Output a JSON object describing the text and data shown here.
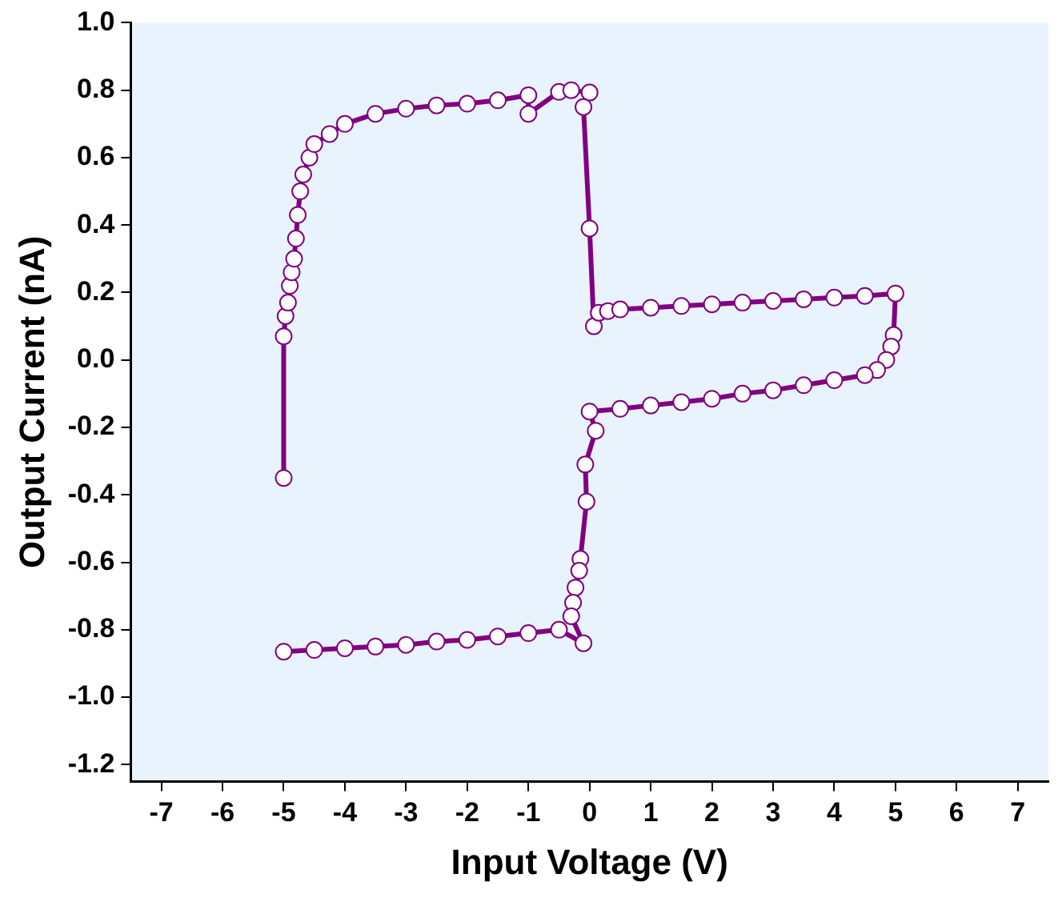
{
  "chart_data": {
    "type": "line",
    "xlabel": "Input Voltage (V)",
    "ylabel": "Output Current (nA)",
    "xlim": [
      -7.5,
      7.5
    ],
    "ylim": [
      -1.25,
      1.0
    ],
    "xticks": [
      -7,
      -6,
      -5,
      -4,
      -3,
      -2,
      -1,
      0,
      1,
      2,
      3,
      4,
      5,
      6,
      7
    ],
    "yticks": [
      {
        "value": -1.2,
        "label": "-1.2"
      },
      {
        "value": -1.0,
        "label": "-1.0"
      },
      {
        "value": -0.8,
        "label": "-0.8"
      },
      {
        "value": -0.6,
        "label": "-0.6"
      },
      {
        "value": -0.4,
        "label": "-0.4"
      },
      {
        "value": -0.2,
        "label": "-0.2"
      },
      {
        "value": 0,
        "label": "0.0"
      },
      {
        "value": 0.2,
        "label": "0.2"
      },
      {
        "value": 0.4,
        "label": "0.4"
      },
      {
        "value": 0.6,
        "label": "0.6"
      },
      {
        "value": 0.8,
        "label": "0.8"
      },
      {
        "value": 1.0,
        "label": "1.0"
      }
    ],
    "grid": false,
    "legend": false,
    "marker": "circle",
    "line_style": "solid",
    "series": [
      {
        "color": "#800080",
        "x": [
          -5,
          -5,
          -4.97,
          -4.93,
          -4.9,
          -4.87,
          -4.83,
          -4.8,
          -4.77,
          -4.73,
          -4.68,
          -4.58,
          -4.5,
          -4.25,
          -4,
          -3.5,
          -3,
          -2.5,
          -2,
          -1.5,
          -1,
          -1,
          -0.5,
          -0.3,
          0,
          -0.1,
          0,
          0.07,
          0.15,
          0.3,
          0.5,
          1,
          1.5,
          2,
          2.5,
          3,
          3.5,
          4,
          4.5,
          5,
          4.97,
          4.93,
          4.85,
          4.7,
          4.5,
          4,
          3.5,
          3,
          2.5,
          2,
          1.5,
          1,
          0.5,
          0,
          0.1,
          -0.07,
          -0.05,
          -0.15,
          -0.17,
          -0.23,
          -0.27,
          -0.3,
          -0.1,
          -0.5,
          -1,
          -1.5,
          -2,
          -2.5,
          -3,
          -3.5,
          -4,
          -4.5,
          -5
        ],
        "values": [
          -0.35,
          0.07,
          0.13,
          0.17,
          0.22,
          0.26,
          0.3,
          0.36,
          0.43,
          0.5,
          0.55,
          0.6,
          0.64,
          0.67,
          0.7,
          0.73,
          0.745,
          0.755,
          0.76,
          0.77,
          0.785,
          0.73,
          0.795,
          0.8,
          0.793,
          0.75,
          0.39,
          0.1,
          0.14,
          0.145,
          0.15,
          0.155,
          0.16,
          0.165,
          0.17,
          0.175,
          0.18,
          0.185,
          0.19,
          0.197,
          0.074,
          0.04,
          0.0,
          -0.03,
          -0.045,
          -0.06,
          -0.075,
          -0.09,
          -0.1,
          -0.115,
          -0.125,
          -0.135,
          -0.145,
          -0.153,
          -0.21,
          -0.31,
          -0.42,
          -0.59,
          -0.625,
          -0.675,
          -0.72,
          -0.76,
          -0.84,
          -0.8,
          -0.81,
          -0.82,
          -0.83,
          -0.835,
          -0.845,
          -0.85,
          -0.855,
          -0.86,
          -0.865
        ]
      }
    ]
  }
}
